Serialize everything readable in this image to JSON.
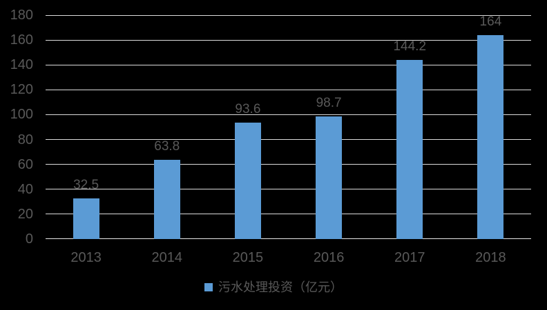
{
  "chart_data": {
    "type": "bar",
    "title": "",
    "xlabel": "",
    "ylabel": "",
    "categories": [
      "2013",
      "2014",
      "2015",
      "2016",
      "2017",
      "2018"
    ],
    "values": [
      32.5,
      63.8,
      93.6,
      98.7,
      144.2,
      164
    ],
    "data_labels": [
      "32.5",
      "63.8",
      "93.6",
      "98.7",
      "144.2",
      "164"
    ],
    "ylim": [
      0,
      180
    ],
    "yticks": [
      0,
      20,
      40,
      60,
      80,
      100,
      120,
      140,
      160,
      180
    ],
    "grid": true,
    "legend": "污水处理投资（亿元）",
    "legend_position": "bottom",
    "colors": {
      "bar": "#5b9bd5",
      "background": "#000000",
      "gridline": "#dcdcdc",
      "text": "#595959"
    }
  }
}
